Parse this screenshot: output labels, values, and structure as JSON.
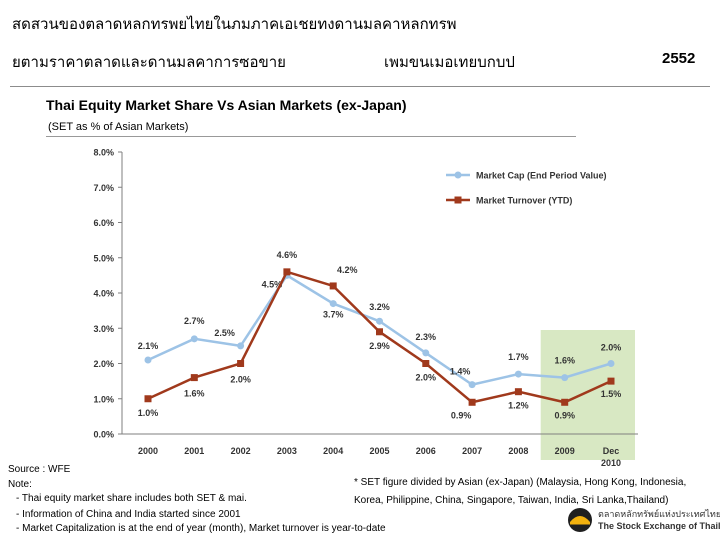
{
  "header": {
    "line1": "สดสวนของตลาดหลกทรพยไทยในภมภาคเอเชยทงดานมลคาหลกทรพ",
    "line2_left": "ยตามราคาตลาดและดานมลคาการซอขาย",
    "line2_mid": "เพมขนเมอเทยบกบป",
    "year": "2552"
  },
  "chart_data": {
    "type": "line",
    "title": "Thai Equity Market Share Vs Asian Markets (ex-Japan)",
    "subtitle": "(SET as % of Asian Markets)",
    "categories": [
      "2000",
      "2001",
      "2002",
      "2003",
      "2004",
      "2005",
      "2006",
      "2007",
      "2008",
      "2009",
      "Dec 2010"
    ],
    "ylim": [
      0,
      8
    ],
    "y_ticks": [
      "0.0%",
      "1.0%",
      "2.0%",
      "3.0%",
      "4.0%",
      "5.0%",
      "6.0%",
      "7.0%",
      "8.0%"
    ],
    "grid": false,
    "legend_position": "top-right",
    "highlight_categories": [
      "2009",
      "Dec 2010"
    ],
    "series": [
      {
        "name": "Market Cap (End Period Value)",
        "color": "#9DC3E6",
        "values": [
          2.1,
          2.7,
          2.5,
          4.5,
          3.7,
          3.2,
          2.3,
          1.4,
          1.7,
          1.6,
          2.0
        ],
        "labels": [
          "2.1%",
          "2.7%",
          "2.5%",
          "4.5%",
          "3.7%",
          "3.2%",
          "2.3%",
          "1.4%",
          "1.7%",
          "1.6%",
          "2.0%"
        ]
      },
      {
        "name": "Market Turnover (YTD)",
        "color": "#A0391C",
        "values": [
          1.0,
          1.6,
          2.0,
          4.6,
          4.2,
          2.9,
          2.0,
          0.9,
          1.2,
          0.9,
          1.5
        ],
        "labels": [
          "1.0%",
          "1.6%",
          "2.0%",
          "4.6%",
          "4.2%",
          "2.9%",
          "2.0%",
          "0.9%",
          "1.2%",
          "0.9%",
          "1.5%"
        ]
      }
    ]
  },
  "notes": {
    "source": "Source : WFE",
    "note_label": "Note:",
    "items": [
      "- Thai equity market share includes both SET & mai.",
      "- Information of China and India started since 2001",
      "- Market Capitalization is at the end of year (month), Market turnover is year-to-date"
    ]
  },
  "footnote": "* SET figure divided by Asian (ex-Japan) (Malaysia, Hong Kong, Indonesia, Korea, Philippine, China, Singapore, Taiwan, India, Sri Lanka,Thailand)",
  "logo": {
    "name_th": "ตลาดหลักทรัพย์แห่งประเทศไทย",
    "name_en": "The Stock Exchange of Thailand"
  }
}
